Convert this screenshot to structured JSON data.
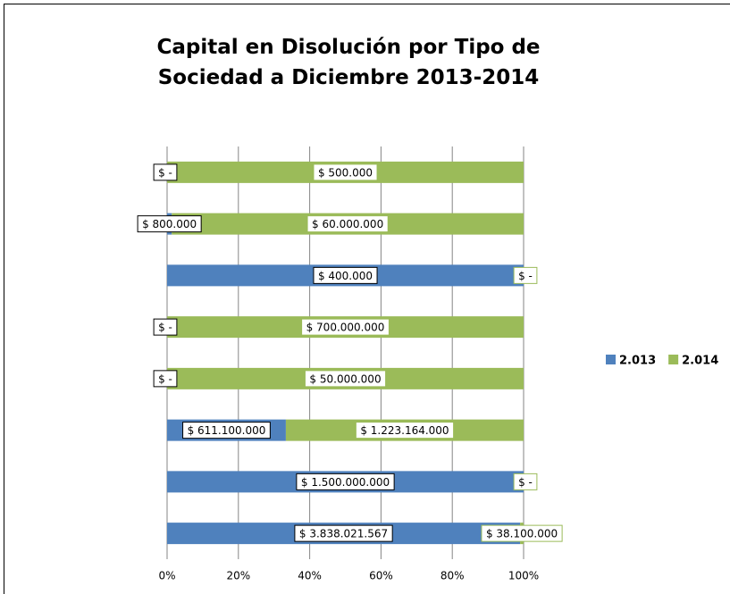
{
  "chart_data": {
    "type": "bar",
    "orientation": "horizontal",
    "stacked": "percent",
    "title": "Capital en Disolución  por Tipo de Sociedad a Diciembre 2013-2014",
    "categories": [
      null,
      null,
      null,
      null,
      null,
      null,
      null,
      null
    ],
    "series": [
      {
        "name": "2.013",
        "color": "#4f81bd",
        "values": [
          0,
          800000,
          400000,
          0,
          0,
          611100000,
          1500000000,
          3838021567
        ],
        "value_labels": [
          "$ -",
          "$ 800.000",
          "$ 400.000",
          "$ -",
          "$ -",
          "$ 611.100.000",
          "$ 1.500.000.000",
          "$ 3.838.021.567"
        ]
      },
      {
        "name": "2.014",
        "color": "#9bbb59",
        "values": [
          500000,
          60000000,
          0,
          700000000,
          50000000,
          1223164000,
          0,
          38100000
        ],
        "value_labels": [
          "$ 500.000",
          "$ 60.000.000",
          "$ -",
          "$ 700.000.000",
          "$ 50.000.000",
          "$ 1.223.164.000",
          "$ -",
          "$ 38.100.000"
        ]
      }
    ],
    "xlim": [
      0,
      100
    ],
    "xticks": [
      {
        "value": 0,
        "label": "0%"
      },
      {
        "value": 20,
        "label": "20%"
      },
      {
        "value": 40,
        "label": "40%"
      },
      {
        "value": 60,
        "label": "60%"
      },
      {
        "value": 80,
        "label": "80%"
      },
      {
        "value": 100,
        "label": "100%"
      }
    ],
    "grid": true,
    "legend": "right"
  }
}
